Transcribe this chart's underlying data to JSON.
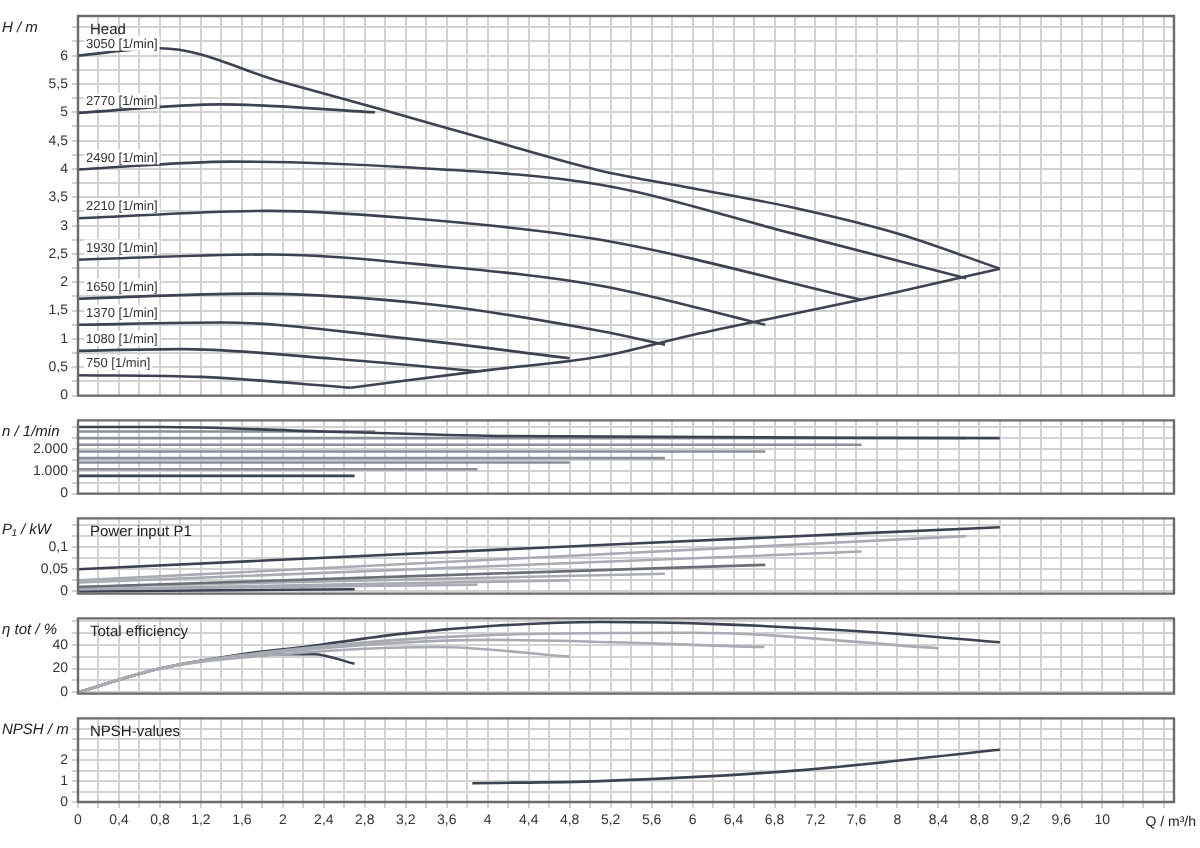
{
  "chart_data": [
    {
      "type": "line",
      "title": "Head",
      "ylabel": "H / m",
      "marker": "none",
      "grid": true,
      "tick_labels": "y",
      "xlim": [
        0,
        10.7
      ],
      "xticks": [
        {
          "value": 0,
          "label": null
        },
        {
          "value": 0.2,
          "label": null
        },
        {
          "value": 0.4,
          "label": null
        },
        {
          "value": 0.6,
          "label": null
        },
        {
          "value": 0.8,
          "label": null
        },
        {
          "value": 1,
          "label": null
        },
        {
          "value": 1.2,
          "label": null
        },
        {
          "value": 1.4,
          "label": null
        },
        {
          "value": 1.6,
          "label": null
        },
        {
          "value": 1.8,
          "label": null
        },
        {
          "value": 2,
          "label": null
        },
        {
          "value": 2.2,
          "label": null
        },
        {
          "value": 2.4,
          "label": null
        },
        {
          "value": 2.6,
          "label": null
        },
        {
          "value": 2.8,
          "label": null
        },
        {
          "value": 3,
          "label": null
        },
        {
          "value": 3.2,
          "label": null
        },
        {
          "value": 3.4,
          "label": null
        },
        {
          "value": 3.6,
          "label": null
        },
        {
          "value": 3.8,
          "label": null
        },
        {
          "value": 4,
          "label": null
        },
        {
          "value": 4.2,
          "label": null
        },
        {
          "value": 4.4,
          "label": null
        },
        {
          "value": 4.6,
          "label": null
        },
        {
          "value": 4.8,
          "label": null
        },
        {
          "value": 5,
          "label": null
        },
        {
          "value": 5.2,
          "label": null
        },
        {
          "value": 5.4,
          "label": null
        },
        {
          "value": 5.6,
          "label": null
        },
        {
          "value": 5.8,
          "label": null
        },
        {
          "value": 6,
          "label": null
        },
        {
          "value": 6.2,
          "label": null
        },
        {
          "value": 6.4,
          "label": null
        },
        {
          "value": 6.6,
          "label": null
        },
        {
          "value": 6.8,
          "label": null
        },
        {
          "value": 7,
          "label": null
        },
        {
          "value": 7.2,
          "label": null
        },
        {
          "value": 7.4,
          "label": null
        },
        {
          "value": 7.6,
          "label": null
        },
        {
          "value": 7.8,
          "label": null
        },
        {
          "value": 8,
          "label": null
        },
        {
          "value": 8.2,
          "label": null
        },
        {
          "value": 8.4,
          "label": null
        },
        {
          "value": 8.6,
          "label": null
        },
        {
          "value": 8.8,
          "label": null
        },
        {
          "value": 9,
          "label": null
        },
        {
          "value": 9.2,
          "label": null
        },
        {
          "value": 9.4,
          "label": null
        },
        {
          "value": 9.6,
          "label": null
        },
        {
          "value": 9.8,
          "label": null
        },
        {
          "value": 10,
          "label": null
        },
        {
          "value": 10.2,
          "label": null
        },
        {
          "value": 10.4,
          "label": null
        },
        {
          "value": 10.6,
          "label": null
        }
      ],
      "ylim": [
        0,
        6.7
      ],
      "yticks": [
        0,
        {
          "value": 0.25,
          "label": null
        },
        {
          "value": 0.5,
          "label": "0,5"
        },
        {
          "value": 0.75,
          "label": null
        },
        1,
        {
          "value": 1.25,
          "label": null
        },
        {
          "value": 1.5,
          "label": "1,5"
        },
        {
          "value": 1.75,
          "label": null
        },
        2,
        {
          "value": 2.25,
          "label": null
        },
        {
          "value": 2.5,
          "label": "2,5"
        },
        {
          "value": 2.75,
          "label": null
        },
        3,
        {
          "value": 3.25,
          "label": null
        },
        {
          "value": 3.5,
          "label": "3,5"
        },
        {
          "value": 3.75,
          "label": null
        },
        4,
        {
          "value": 4.25,
          "label": null
        },
        {
          "value": 4.5,
          "label": "4,5"
        },
        {
          "value": 4.75,
          "label": null
        },
        5,
        {
          "value": 5.25,
          "label": null
        },
        {
          "value": 5.5,
          "label": "5,5"
        },
        {
          "value": 5.75,
          "label": null
        },
        6,
        {
          "value": 6.25,
          "label": null
        },
        {
          "value": 6.5,
          "label": null
        }
      ],
      "series": [
        {
          "name": "3050 [1/min]",
          "color": "#3c4250",
          "x": [
            0,
            0.8,
            2,
            3,
            4,
            5.1,
            6,
            7,
            8,
            9
          ],
          "values": [
            6.0,
            6.13,
            5.53,
            5.03,
            4.52,
            3.97,
            3.66,
            3.31,
            2.86,
            2.24
          ]
        },
        {
          "name": "2770 [1/min]",
          "color": "#3c4250",
          "x": [
            0,
            1.4,
            2.9
          ],
          "values": [
            4.99,
            5.14,
            5.0
          ]
        },
        {
          "name": "2490 [1/min]",
          "color": "#3c4250",
          "x": [
            0,
            1.5,
            3.2,
            5.1,
            7,
            8.67
          ],
          "values": [
            3.99,
            4.13,
            4.03,
            3.72,
            2.85,
            2.07
          ]
        },
        {
          "name": "2210 [1/min]",
          "color": "#3c4250",
          "x": [
            0,
            1.85,
            3.5,
            5.1,
            7.65
          ],
          "values": [
            3.13,
            3.26,
            3.09,
            2.75,
            1.69
          ]
        },
        {
          "name": "1930 [1/min]",
          "color": "#3c4250",
          "x": [
            0,
            1.85,
            3.5,
            5.1,
            6.71
          ],
          "values": [
            2.4,
            2.49,
            2.29,
            1.94,
            1.25
          ]
        },
        {
          "name": "1650 [1/min]",
          "color": "#3c4250",
          "x": [
            0,
            1.7,
            3.5,
            5.1,
            5.73
          ],
          "values": [
            1.71,
            1.8,
            1.6,
            1.14,
            0.9
          ]
        },
        {
          "name": "1370 [1/min]",
          "color": "#3c4250",
          "x": [
            0,
            1.4,
            3,
            4.8
          ],
          "values": [
            1.25,
            1.29,
            1.05,
            0.66
          ]
        },
        {
          "name": "1080 [1/min]",
          "color": "#3c4250",
          "x": [
            0,
            1,
            2.5,
            3.9
          ],
          "values": [
            0.79,
            0.82,
            0.65,
            0.43
          ]
        },
        {
          "name": "750 [1/min]",
          "color": "#3c4250",
          "x": [
            0,
            1.2,
            2.66
          ],
          "values": [
            0.36,
            0.33,
            0.14
          ]
        },
        {
          "color": "#3c4250",
          "x": [
            2.66,
            4,
            5.1,
            6,
            7,
            8,
            9
          ],
          "values": [
            0.14,
            0.45,
            0.69,
            1.07,
            1.45,
            1.83,
            2.24
          ]
        }
      ]
    },
    {
      "type": "line",
      "ylabel": "n / 1/min",
      "marker": "none",
      "grid": true,
      "tick_labels": "y",
      "xlim": [
        0,
        10.7
      ],
      "xticks": [
        {
          "value": 0,
          "label": null
        },
        {
          "value": 0.2,
          "label": null
        },
        {
          "value": 0.4,
          "label": null
        },
        {
          "value": 0.6,
          "label": null
        },
        {
          "value": 0.8,
          "label": null
        },
        {
          "value": 1,
          "label": null
        },
        {
          "value": 1.2,
          "label": null
        },
        {
          "value": 1.4,
          "label": null
        },
        {
          "value": 1.6,
          "label": null
        },
        {
          "value": 1.8,
          "label": null
        },
        {
          "value": 2,
          "label": null
        },
        {
          "value": 2.2,
          "label": null
        },
        {
          "value": 2.4,
          "label": null
        },
        {
          "value": 2.6,
          "label": null
        },
        {
          "value": 2.8,
          "label": null
        },
        {
          "value": 3,
          "label": null
        },
        {
          "value": 3.2,
          "label": null
        },
        {
          "value": 3.4,
          "label": null
        },
        {
          "value": 3.6,
          "label": null
        },
        {
          "value": 3.8,
          "label": null
        },
        {
          "value": 4,
          "label": null
        },
        {
          "value": 4.2,
          "label": null
        },
        {
          "value": 4.4,
          "label": null
        },
        {
          "value": 4.6,
          "label": null
        },
        {
          "value": 4.8,
          "label": null
        },
        {
          "value": 5,
          "label": null
        },
        {
          "value": 5.2,
          "label": null
        },
        {
          "value": 5.4,
          "label": null
        },
        {
          "value": 5.6,
          "label": null
        },
        {
          "value": 5.8,
          "label": null
        },
        {
          "value": 6,
          "label": null
        },
        {
          "value": 6.2,
          "label": null
        },
        {
          "value": 6.4,
          "label": null
        },
        {
          "value": 6.6,
          "label": null
        },
        {
          "value": 6.8,
          "label": null
        },
        {
          "value": 7,
          "label": null
        },
        {
          "value": 7.2,
          "label": null
        },
        {
          "value": 7.4,
          "label": null
        },
        {
          "value": 7.6,
          "label": null
        },
        {
          "value": 7.8,
          "label": null
        },
        {
          "value": 8,
          "label": null
        },
        {
          "value": 8.2,
          "label": null
        },
        {
          "value": 8.4,
          "label": null
        },
        {
          "value": 8.6,
          "label": null
        },
        {
          "value": 8.8,
          "label": null
        },
        {
          "value": 9,
          "label": null
        },
        {
          "value": 9.2,
          "label": null
        },
        {
          "value": 9.4,
          "label": null
        },
        {
          "value": 9.6,
          "label": null
        },
        {
          "value": 9.8,
          "label": null
        },
        {
          "value": 10,
          "label": null
        },
        {
          "value": 10.2,
          "label": null
        },
        {
          "value": 10.4,
          "label": null
        },
        {
          "value": 10.6,
          "label": null
        }
      ],
      "ylim": [
        0,
        3300
      ],
      "yticks": [
        0,
        {
          "value": 500,
          "label": null
        },
        {
          "value": 1000,
          "label": "1.000"
        },
        {
          "value": 1500,
          "label": null
        },
        {
          "value": 2000,
          "label": "2.000"
        },
        {
          "value": 2500,
          "label": null
        },
        {
          "value": 3000,
          "label": null
        }
      ],
      "series": [
        {
          "color": "#3c4250",
          "x": [
            0,
            0.8,
            2.4,
            4.1,
            9
          ],
          "values": [
            3000,
            3000,
            2800,
            2600,
            2500
          ]
        },
        {
          "color": "#8a8f98",
          "x": [
            0,
            2.9
          ],
          "values": [
            2800,
            2800
          ]
        },
        {
          "color": "#8a8f98",
          "x": [
            0,
            8.67
          ],
          "values": [
            2500,
            2500
          ]
        },
        {
          "color": "#8a8f98",
          "x": [
            0,
            7.65
          ],
          "values": [
            2200,
            2200
          ]
        },
        {
          "color": "#8a8f98",
          "x": [
            0,
            6.71
          ],
          "values": [
            1900,
            1900
          ]
        },
        {
          "color": "#8a8f98",
          "x": [
            0,
            5.73
          ],
          "values": [
            1600,
            1600
          ]
        },
        {
          "color": "#8a8f98",
          "x": [
            0,
            4.8
          ],
          "values": [
            1400,
            1400
          ]
        },
        {
          "color": "#8a8f98",
          "x": [
            0,
            3.9
          ],
          "values": [
            1100,
            1100
          ]
        },
        {
          "color": "#3c4250",
          "x": [
            0,
            2.7
          ],
          "values": [
            800,
            800
          ]
        }
      ]
    },
    {
      "type": "line",
      "title": "Power input P1",
      "ylabel": "P₁ / kW",
      "marker": "none",
      "grid": true,
      "tick_labels": "y",
      "xlim": [
        0,
        10.7
      ],
      "xticks": [
        {
          "value": 0,
          "label": null
        },
        {
          "value": 0.2,
          "label": null
        },
        {
          "value": 0.4,
          "label": null
        },
        {
          "value": 0.6,
          "label": null
        },
        {
          "value": 0.8,
          "label": null
        },
        {
          "value": 1,
          "label": null
        },
        {
          "value": 1.2,
          "label": null
        },
        {
          "value": 1.4,
          "label": null
        },
        {
          "value": 1.6,
          "label": null
        },
        {
          "value": 1.8,
          "label": null
        },
        {
          "value": 2,
          "label": null
        },
        {
          "value": 2.2,
          "label": null
        },
        {
          "value": 2.4,
          "label": null
        },
        {
          "value": 2.6,
          "label": null
        },
        {
          "value": 2.8,
          "label": null
        },
        {
          "value": 3,
          "label": null
        },
        {
          "value": 3.2,
          "label": null
        },
        {
          "value": 3.4,
          "label": null
        },
        {
          "value": 3.6,
          "label": null
        },
        {
          "value": 3.8,
          "label": null
        },
        {
          "value": 4,
          "label": null
        },
        {
          "value": 4.2,
          "label": null
        },
        {
          "value": 4.4,
          "label": null
        },
        {
          "value": 4.6,
          "label": null
        },
        {
          "value": 4.8,
          "label": null
        },
        {
          "value": 5,
          "label": null
        },
        {
          "value": 5.2,
          "label": null
        },
        {
          "value": 5.4,
          "label": null
        },
        {
          "value": 5.6,
          "label": null
        },
        {
          "value": 5.8,
          "label": null
        },
        {
          "value": 6,
          "label": null
        },
        {
          "value": 6.2,
          "label": null
        },
        {
          "value": 6.4,
          "label": null
        },
        {
          "value": 6.6,
          "label": null
        },
        {
          "value": 6.8,
          "label": null
        },
        {
          "value": 7,
          "label": null
        },
        {
          "value": 7.2,
          "label": null
        },
        {
          "value": 7.4,
          "label": null
        },
        {
          "value": 7.6,
          "label": null
        },
        {
          "value": 7.8,
          "label": null
        },
        {
          "value": 8,
          "label": null
        },
        {
          "value": 8.2,
          "label": null
        },
        {
          "value": 8.4,
          "label": null
        },
        {
          "value": 8.6,
          "label": null
        },
        {
          "value": 8.8,
          "label": null
        },
        {
          "value": 9,
          "label": null
        },
        {
          "value": 9.2,
          "label": null
        },
        {
          "value": 9.4,
          "label": null
        },
        {
          "value": 9.6,
          "label": null
        },
        {
          "value": 9.8,
          "label": null
        },
        {
          "value": 10,
          "label": null
        },
        {
          "value": 10.2,
          "label": null
        },
        {
          "value": 10.4,
          "label": null
        },
        {
          "value": 10.6,
          "label": null
        }
      ],
      "ylim": [
        -0.005,
        0.165
      ],
      "yticks": [
        0,
        {
          "value": 0.025,
          "label": null
        },
        {
          "value": 0.05,
          "label": "0,05"
        },
        {
          "value": 0.075,
          "label": null
        },
        {
          "value": 0.1,
          "label": "0,1"
        },
        {
          "value": 0.125,
          "label": null
        },
        {
          "value": 0.15,
          "label": null
        }
      ],
      "series": [
        {
          "color": "#3c4250",
          "x": [
            0,
            5.1,
            9
          ],
          "values": [
            0.05,
            0.105,
            0.145
          ]
        },
        {
          "color": "#a8acb2",
          "x": [
            0,
            8.67
          ],
          "values": [
            0.025,
            0.125
          ]
        },
        {
          "color": "#a8acb2",
          "x": [
            0,
            7.65
          ],
          "values": [
            0.02,
            0.09
          ]
        },
        {
          "color": "#6a6f78",
          "x": [
            0,
            6.71
          ],
          "values": [
            0.01,
            0.06
          ]
        },
        {
          "color": "#a8acb2",
          "x": [
            0,
            5.73
          ],
          "values": [
            0.01,
            0.04
          ]
        },
        {
          "color": "#a8acb2",
          "x": [
            0,
            4.8
          ],
          "values": [
            0.005,
            0.025
          ]
        },
        {
          "color": "#a8acb2",
          "x": [
            0,
            3.9
          ],
          "values": [
            0.005,
            0.015
          ]
        },
        {
          "color": "#3c4250",
          "x": [
            0,
            2.7
          ],
          "values": [
            0,
            0.005
          ]
        }
      ]
    },
    {
      "type": "line",
      "title": "Total efficiency",
      "ylabel": "η tot / %",
      "marker": "none",
      "grid": true,
      "tick_labels": "y",
      "xlim": [
        0,
        10.7
      ],
      "xticks": [
        {
          "value": 0,
          "label": null
        },
        {
          "value": 0.2,
          "label": null
        },
        {
          "value": 0.4,
          "label": null
        },
        {
          "value": 0.6,
          "label": null
        },
        {
          "value": 0.8,
          "label": null
        },
        {
          "value": 1,
          "label": null
        },
        {
          "value": 1.2,
          "label": null
        },
        {
          "value": 1.4,
          "label": null
        },
        {
          "value": 1.6,
          "label": null
        },
        {
          "value": 1.8,
          "label": null
        },
        {
          "value": 2,
          "label": null
        },
        {
          "value": 2.2,
          "label": null
        },
        {
          "value": 2.4,
          "label": null
        },
        {
          "value": 2.6,
          "label": null
        },
        {
          "value": 2.8,
          "label": null
        },
        {
          "value": 3,
          "label": null
        },
        {
          "value": 3.2,
          "label": null
        },
        {
          "value": 3.4,
          "label": null
        },
        {
          "value": 3.6,
          "label": null
        },
        {
          "value": 3.8,
          "label": null
        },
        {
          "value": 4,
          "label": null
        },
        {
          "value": 4.2,
          "label": null
        },
        {
          "value": 4.4,
          "label": null
        },
        {
          "value": 4.6,
          "label": null
        },
        {
          "value": 4.8,
          "label": null
        },
        {
          "value": 5,
          "label": null
        },
        {
          "value": 5.2,
          "label": null
        },
        {
          "value": 5.4,
          "label": null
        },
        {
          "value": 5.6,
          "label": null
        },
        {
          "value": 5.8,
          "label": null
        },
        {
          "value": 6,
          "label": null
        },
        {
          "value": 6.2,
          "label": null
        },
        {
          "value": 6.4,
          "label": null
        },
        {
          "value": 6.6,
          "label": null
        },
        {
          "value": 6.8,
          "label": null
        },
        {
          "value": 7,
          "label": null
        },
        {
          "value": 7.2,
          "label": null
        },
        {
          "value": 7.4,
          "label": null
        },
        {
          "value": 7.6,
          "label": null
        },
        {
          "value": 7.8,
          "label": null
        },
        {
          "value": 8,
          "label": null
        },
        {
          "value": 8.2,
          "label": null
        },
        {
          "value": 8.4,
          "label": null
        },
        {
          "value": 8.6,
          "label": null
        },
        {
          "value": 8.8,
          "label": null
        },
        {
          "value": 9,
          "label": null
        },
        {
          "value": 9.2,
          "label": null
        },
        {
          "value": 9.4,
          "label": null
        },
        {
          "value": 9.6,
          "label": null
        },
        {
          "value": 9.8,
          "label": null
        },
        {
          "value": 10,
          "label": null
        },
        {
          "value": 10.2,
          "label": null
        },
        {
          "value": 10.4,
          "label": null
        },
        {
          "value": 10.6,
          "label": null
        }
      ],
      "ylim": [
        -1,
        62
      ],
      "yticks": [
        0,
        {
          "value": 10,
          "label": null
        },
        20,
        {
          "value": 30,
          "label": null
        },
        40,
        {
          "value": 50,
          "label": null
        },
        {
          "value": 60,
          "label": null
        }
      ],
      "series": [
        {
          "color": "#a8acb2",
          "x": [
            0,
            0.8,
            2.2,
            4,
            6,
            8.4
          ],
          "values": [
            0,
            20,
            37,
            48,
            50,
            37
          ]
        },
        {
          "color": "#a8acb2",
          "x": [
            0,
            0.8,
            2,
            4,
            6.7
          ],
          "values": [
            0,
            20,
            34,
            44,
            38
          ]
        },
        {
          "color": "#a8acb2",
          "x": [
            0,
            0.8,
            2,
            3.5,
            4.8
          ],
          "values": [
            0,
            20,
            32,
            38,
            30
          ]
        },
        {
          "color": "#3c4250",
          "x": [
            0,
            0.8,
            1.6,
            2.2,
            3.15,
            4.1,
            5.1,
            6.3,
            7.85,
            9
          ],
          "values": [
            0,
            20,
            32,
            38,
            49,
            56,
            59,
            57,
            50,
            42
          ]
        },
        {
          "color": "#3c4250",
          "x": [
            0,
            0.8,
            2,
            2.3,
            2.7
          ],
          "values": [
            0,
            20,
            32,
            32,
            24
          ]
        }
      ]
    },
    {
      "type": "line",
      "title": "NPSH-values",
      "ylabel": "NPSH / m",
      "xlabel": "Q / m³/h",
      "marker": "none",
      "grid": true,
      "xlim": [
        0,
        10.7
      ],
      "xticks": [
        0,
        {
          "value": 0.2,
          "label": null
        },
        {
          "value": 0.4,
          "label": "0,4"
        },
        {
          "value": 0.6,
          "label": null
        },
        {
          "value": 0.8,
          "label": "0,8"
        },
        {
          "value": 1,
          "label": null
        },
        {
          "value": 1.2,
          "label": "1,2"
        },
        {
          "value": 1.4,
          "label": null
        },
        {
          "value": 1.6,
          "label": "1,6"
        },
        {
          "value": 1.8,
          "label": null
        },
        2,
        {
          "value": 2.2,
          "label": null
        },
        {
          "value": 2.4,
          "label": "2,4"
        },
        {
          "value": 2.6,
          "label": null
        },
        {
          "value": 2.8,
          "label": "2,8"
        },
        {
          "value": 3,
          "label": null
        },
        {
          "value": 3.2,
          "label": "3,2"
        },
        {
          "value": 3.4,
          "label": null
        },
        {
          "value": 3.6,
          "label": "3,6"
        },
        {
          "value": 3.8,
          "label": null
        },
        4,
        {
          "value": 4.2,
          "label": null
        },
        {
          "value": 4.4,
          "label": "4,4"
        },
        {
          "value": 4.6,
          "label": null
        },
        {
          "value": 4.8,
          "label": "4,8"
        },
        {
          "value": 5,
          "label": null
        },
        {
          "value": 5.2,
          "label": "5,2"
        },
        {
          "value": 5.4,
          "label": null
        },
        {
          "value": 5.6,
          "label": "5,6"
        },
        {
          "value": 5.8,
          "label": null
        },
        6,
        {
          "value": 6.2,
          "label": null
        },
        {
          "value": 6.4,
          "label": "6,4"
        },
        {
          "value": 6.6,
          "label": null
        },
        {
          "value": 6.8,
          "label": "6,8"
        },
        {
          "value": 7,
          "label": null
        },
        {
          "value": 7.2,
          "label": "7,2"
        },
        {
          "value": 7.4,
          "label": null
        },
        {
          "value": 7.6,
          "label": "7,6"
        },
        {
          "value": 7.8,
          "label": null
        },
        8,
        {
          "value": 8.2,
          "label": null
        },
        {
          "value": 8.4,
          "label": "8,4"
        },
        {
          "value": 8.6,
          "label": null
        },
        {
          "value": 8.8,
          "label": "8,8"
        },
        {
          "value": 9,
          "label": null
        },
        {
          "value": 9.2,
          "label": "9,2"
        },
        {
          "value": 9.4,
          "label": null
        },
        {
          "value": 9.6,
          "label": "9,6"
        },
        {
          "value": 9.8,
          "label": null
        },
        10,
        {
          "value": 10.2,
          "label": null
        },
        {
          "value": 10.4,
          "label": null
        },
        {
          "value": 10.6,
          "label": null
        }
      ],
      "ylim": [
        0,
        4
      ],
      "yticks": [
        0,
        {
          "value": 0.5,
          "label": null
        },
        1,
        {
          "value": 1.5,
          "label": null
        },
        2,
        {
          "value": 2.5,
          "label": null
        },
        {
          "value": 3,
          "label": null
        },
        {
          "value": 3.5,
          "label": null
        }
      ],
      "series": [
        {
          "color": "#3c4250",
          "x": [
            3.85,
            5.1,
            7,
            9
          ],
          "values": [
            0.9,
            1.0,
            1.5,
            2.5
          ]
        }
      ]
    }
  ]
}
